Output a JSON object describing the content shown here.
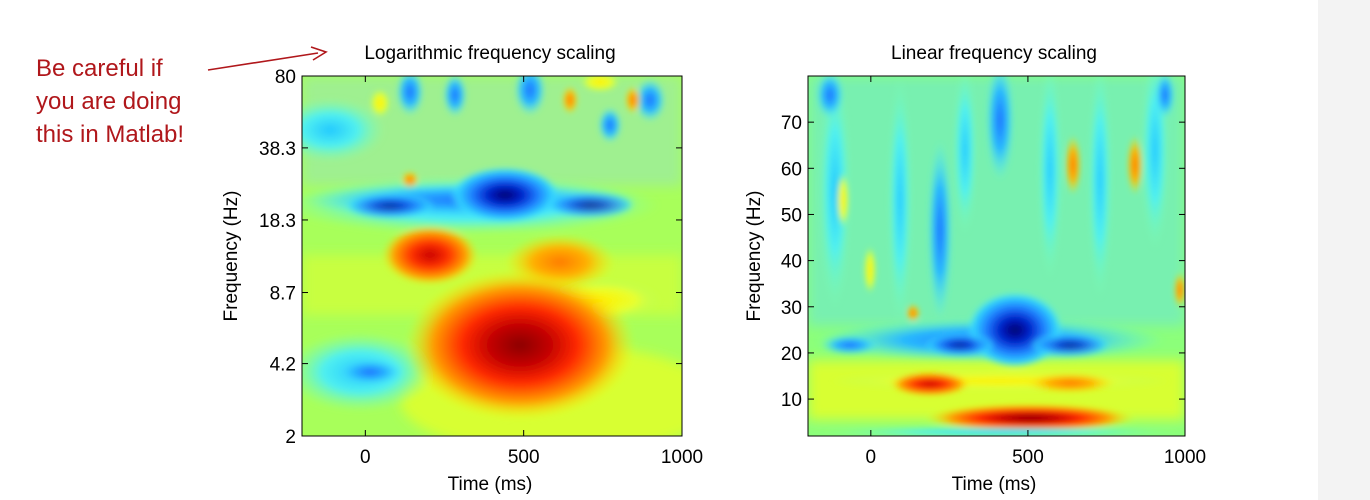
{
  "annotation": {
    "lines": [
      "Be careful if",
      "you are doing",
      "this in Matlab!"
    ],
    "color": "#b0171b"
  },
  "chart_data": [
    {
      "type": "heatmap",
      "title": "Logarithmic frequency scaling",
      "xlabel": "Time (ms)",
      "ylabel": "Frequency (Hz)",
      "xlim": [
        -200,
        1000
      ],
      "ylim": [
        2,
        80
      ],
      "yscale": "log",
      "xticks": [
        0,
        500,
        1000
      ],
      "xtick_labels": [
        "0",
        "500",
        "1000"
      ],
      "yticks": [
        2,
        4.2,
        8.7,
        18.3,
        38.3,
        80
      ],
      "ytick_labels": [
        "2",
        "4.2",
        "8.7",
        "18.3",
        "38.3",
        "80"
      ],
      "colormap": "jet",
      "features": [
        {
          "time_ms": 500,
          "freq_hz": 5,
          "level": 0.98
        },
        {
          "time_ms": 180,
          "freq_hz": 12,
          "level": 0.9
        },
        {
          "time_ms": 650,
          "freq_hz": 12,
          "level": 0.78
        },
        {
          "time_ms": 450,
          "freq_hz": 25,
          "level": 0.05
        },
        {
          "time_ms": 0,
          "freq_hz": 22,
          "level": 0.22
        },
        {
          "time_ms": 0,
          "freq_hz": 3.6,
          "level": 0.32
        }
      ]
    },
    {
      "type": "heatmap",
      "title": "Linear frequency scaling",
      "xlabel": "Time (ms)",
      "ylabel": "Frequency (Hz)",
      "xlim": [
        -200,
        1000
      ],
      "ylim": [
        2,
        80
      ],
      "yscale": "linear",
      "xticks": [
        0,
        500,
        1000
      ],
      "xtick_labels": [
        "0",
        "500",
        "1000"
      ],
      "yticks": [
        10,
        20,
        30,
        40,
        50,
        60,
        70
      ],
      "ytick_labels": [
        "10",
        "20",
        "30",
        "40",
        "50",
        "60",
        "70"
      ],
      "colormap": "jet",
      "features": [
        {
          "time_ms": 500,
          "freq_hz": 5,
          "level": 0.98
        },
        {
          "time_ms": 180,
          "freq_hz": 12,
          "level": 0.9
        },
        {
          "time_ms": 650,
          "freq_hz": 12,
          "level": 0.78
        },
        {
          "time_ms": 450,
          "freq_hz": 23,
          "level": 0.05
        },
        {
          "time_ms": 0,
          "freq_hz": 22,
          "level": 0.22
        }
      ]
    }
  ]
}
